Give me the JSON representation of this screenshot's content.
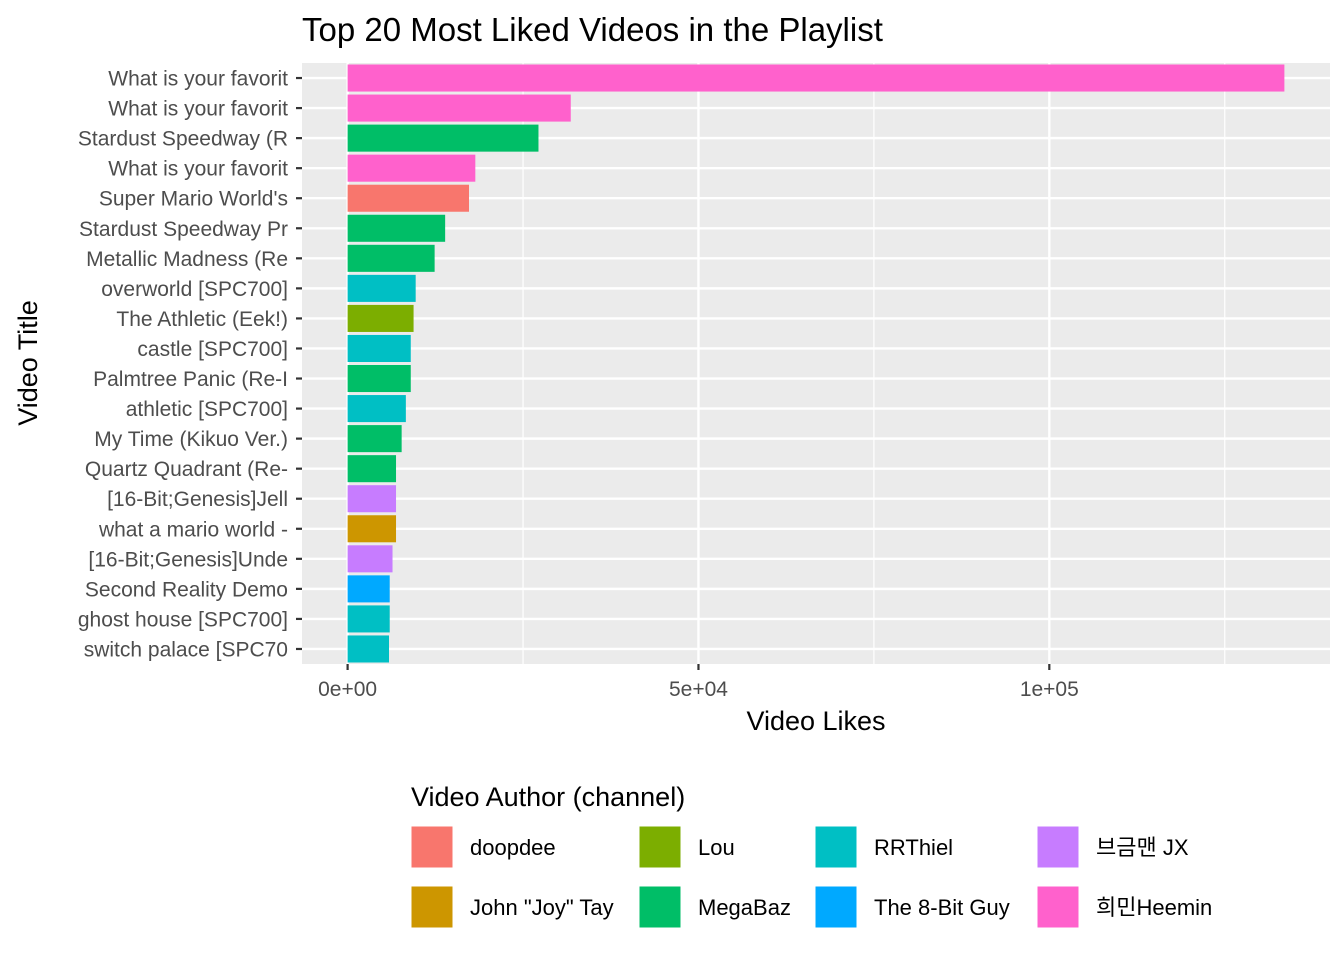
{
  "chart_data": {
    "type": "bar",
    "orientation": "horizontal",
    "title": "Top 20 Most Liked Videos in the Playlist",
    "xlabel": "Video Likes",
    "ylabel": "Video Title",
    "xlim": [
      -6500,
      140000
    ],
    "xticks": [
      {
        "value": 0,
        "label": "0e+00"
      },
      {
        "value": 50000,
        "label": "5e+04"
      },
      {
        "value": 100000,
        "label": "1e+05"
      }
    ],
    "x_minor_gridlines": [
      25000,
      75000,
      125000
    ],
    "grid": true,
    "legend": {
      "title": "Video Author (channel)",
      "placement": "bottom",
      "entries": [
        {
          "name": "doopdee",
          "color": "#F8766D"
        },
        {
          "name": "John \"Joy\" Tay",
          "color": "#CD9600"
        },
        {
          "name": "Lou",
          "color": "#7CAE00"
        },
        {
          "name": "MegaBaz",
          "color": "#00BE67"
        },
        {
          "name": "RRThiel",
          "color": "#00BFC4"
        },
        {
          "name": "The 8-Bit Guy",
          "color": "#00A9FF"
        },
        {
          "name": "브금맨 JX",
          "color": "#C77CFF"
        },
        {
          "name": "희민Heemin",
          "color": "#FF61CC"
        }
      ]
    },
    "bars": [
      {
        "label": "What is your favorit",
        "value": 133500,
        "author": "희민Heemin"
      },
      {
        "label": "What is your favorit",
        "value": 31800,
        "author": "희민Heemin"
      },
      {
        "label": "Stardust Speedway (R",
        "value": 27200,
        "author": "MegaBaz"
      },
      {
        "label": "What is your favorit",
        "value": 18200,
        "author": "희민Heemin"
      },
      {
        "label": "Super Mario World's ",
        "value": 17300,
        "author": "doopdee"
      },
      {
        "label": "Stardust Speedway Pr",
        "value": 13900,
        "author": "MegaBaz"
      },
      {
        "label": "Metallic Madness (Re",
        "value": 12400,
        "author": "MegaBaz"
      },
      {
        "label": "overworld [SPC700]",
        "value": 9700,
        "author": "RRThiel"
      },
      {
        "label": "The Athletic (Eek!) ",
        "value": 9400,
        "author": "Lou"
      },
      {
        "label": "castle [SPC700]",
        "value": 9000,
        "author": "RRThiel"
      },
      {
        "label": "Palmtree Panic (Re-I",
        "value": 9000,
        "author": "MegaBaz"
      },
      {
        "label": "athletic [SPC700]",
        "value": 8300,
        "author": "RRThiel"
      },
      {
        "label": "My Time (Kikuo Ver.)",
        "value": 7700,
        "author": "MegaBaz"
      },
      {
        "label": "Quartz Quadrant (Re-",
        "value": 6900,
        "author": "MegaBaz"
      },
      {
        "label": "[16-Bit;Genesis]Jell",
        "value": 6900,
        "author": "브금맨 JX"
      },
      {
        "label": "what a mario world -",
        "value": 6900,
        "author": "John \"Joy\" Tay"
      },
      {
        "label": "[16-Bit;Genesis]Unde",
        "value": 6400,
        "author": "브금맨 JX"
      },
      {
        "label": "Second Reality Demo ",
        "value": 6000,
        "author": "The 8-Bit Guy"
      },
      {
        "label": "ghost house [SPC700]",
        "value": 6000,
        "author": "RRThiel"
      },
      {
        "label": "switch palace [SPC70",
        "value": 5900,
        "author": "RRThiel"
      }
    ]
  }
}
